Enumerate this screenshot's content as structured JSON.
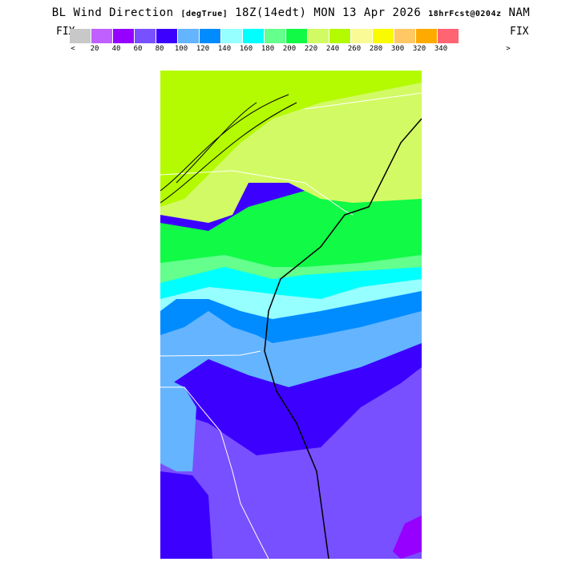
{
  "title": {
    "main": "BL Wind Direction",
    "units": "[degTrue]",
    "time": "18Z(14edt) MON 13 Apr 2026",
    "fcst": "18hrFcst@0204z",
    "model": "NAM"
  },
  "legend": {
    "fix_left": "FIX",
    "fix_right": "FIX",
    "arrow_left": "<",
    "arrow_right": ">",
    "colors": [
      "#c8c8c8",
      "#c060ff",
      "#9600ff",
      "#7850ff",
      "#3c00ff",
      "#64b4ff",
      "#008cff",
      "#96ffff",
      "#00ffff",
      "#64ff8c",
      "#10fa46",
      "#d2fa64",
      "#b4fa00",
      "#fafa96",
      "#fafa00",
      "#ffc864",
      "#ffaa00",
      "#ff6473"
    ],
    "ticks": [
      "20",
      "40",
      "60",
      "80",
      "100",
      "120",
      "140",
      "160",
      "180",
      "200",
      "220",
      "240",
      "260",
      "280",
      "300",
      "320",
      "340"
    ]
  }
}
